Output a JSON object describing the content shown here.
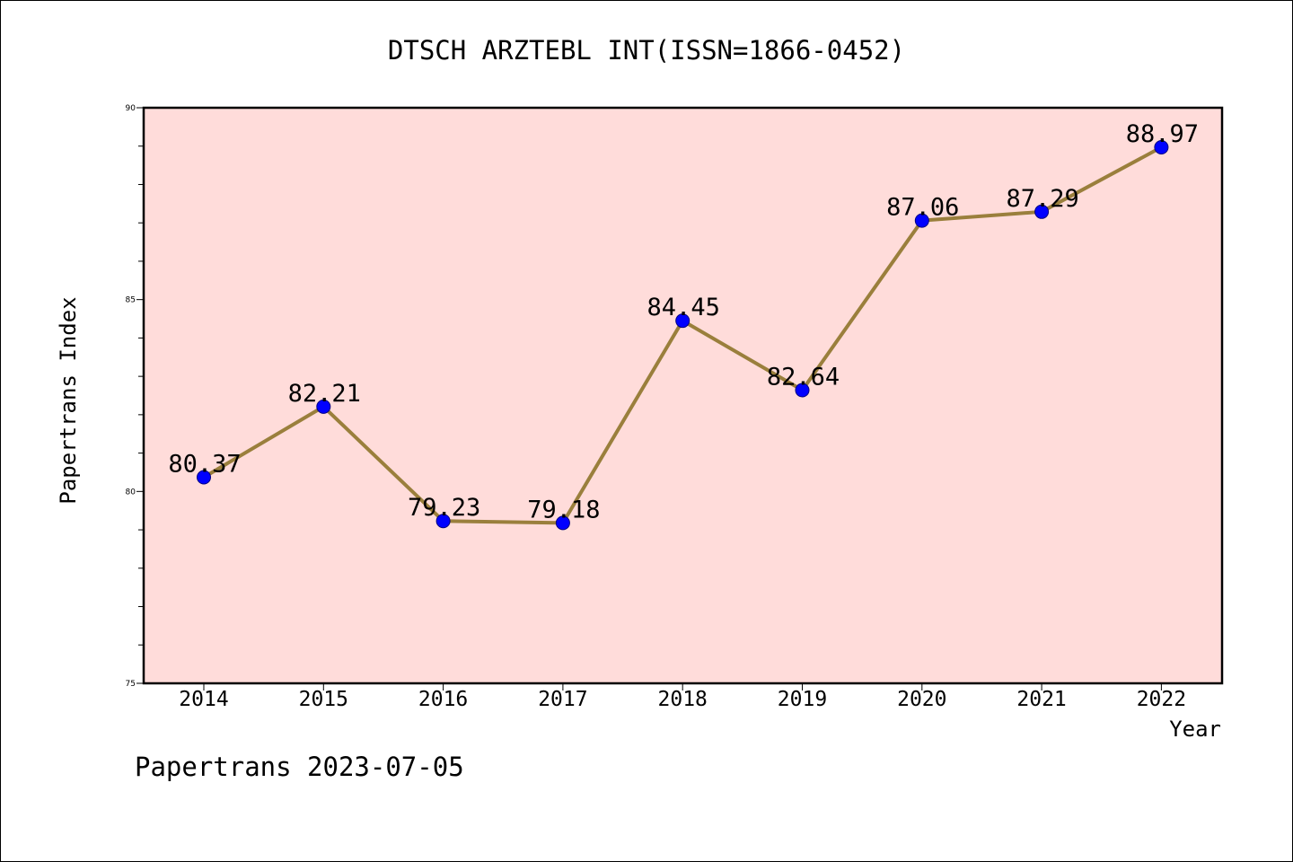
{
  "chart_data": {
    "type": "line",
    "title": "DTSCH ARZTEBL INT(ISSN=1866-0452)",
    "xlabel": "Year",
    "ylabel": "Papertrans Index",
    "categories": [
      "2014",
      "2015",
      "2016",
      "2017",
      "2018",
      "2019",
      "2020",
      "2021",
      "2022"
    ],
    "values": [
      80.37,
      82.21,
      79.23,
      79.18,
      84.45,
      82.64,
      87.06,
      87.29,
      88.97
    ],
    "data_labels": [
      "80.37",
      "82.21",
      "79.23",
      "79.18",
      "84.45",
      "82.64",
      "87.06",
      "87.29",
      "88.97"
    ],
    "ylim": [
      75,
      90
    ],
    "y_ticks": [
      "75",
      "80",
      "85",
      "90"
    ],
    "y_minor_step": 1,
    "grid": false,
    "colors": {
      "plot_background": "#FFDCDA",
      "line": "#9A7F3C",
      "marker": "#0000FF",
      "marker_edge": "#000080"
    }
  },
  "footer": {
    "text": "Papertrans 2023-07-05"
  }
}
